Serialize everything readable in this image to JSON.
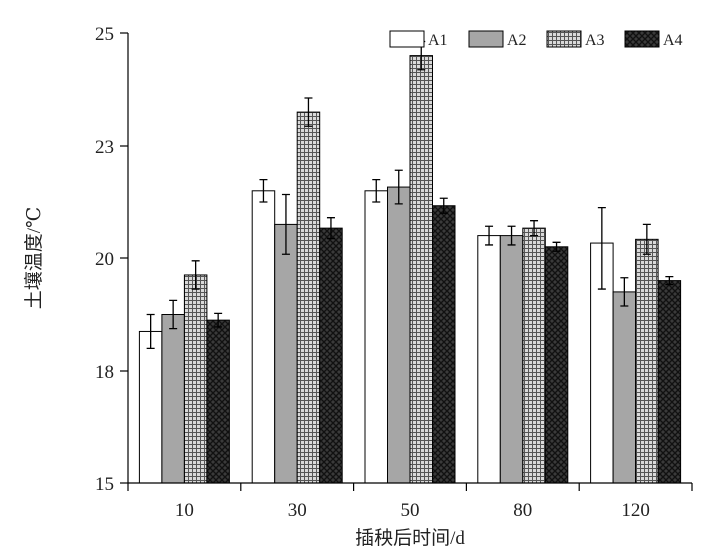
{
  "chart_data": {
    "type": "bar",
    "xlabel": "插秧后时间/d",
    "ylabel": "土壤温度/℃",
    "categories": [
      "10",
      "30",
      "50",
      "80",
      "120"
    ],
    "yticks": [
      "15",
      "18",
      "20",
      "23",
      "25"
    ],
    "ylim": [
      15,
      25
    ],
    "grid": false,
    "legend_position": "top-right",
    "series": [
      {
        "name": "A1",
        "values": [
          18.7,
          21.8,
          21.8,
          20.6,
          20.4
        ],
        "errors": [
          0.3,
          0.3,
          0.3,
          0.25,
          0.95
        ],
        "fill": "white"
      },
      {
        "name": "A2",
        "values": [
          19.0,
          20.9,
          21.9,
          20.6,
          19.4
        ],
        "errors": [
          0.25,
          0.8,
          0.45,
          0.25,
          0.25
        ],
        "fill": "gray"
      },
      {
        "name": "A3",
        "values": [
          19.7,
          23.6,
          24.6,
          20.8,
          20.5
        ],
        "errors": [
          0.25,
          0.25,
          0.25,
          0.2,
          0.4
        ],
        "fill": "grid"
      },
      {
        "name": "A4",
        "values": [
          18.9,
          20.8,
          21.4,
          20.3,
          19.6
        ],
        "errors": [
          0.12,
          0.28,
          0.2,
          0.12,
          0.07
        ],
        "fill": "crosshatch"
      }
    ]
  }
}
